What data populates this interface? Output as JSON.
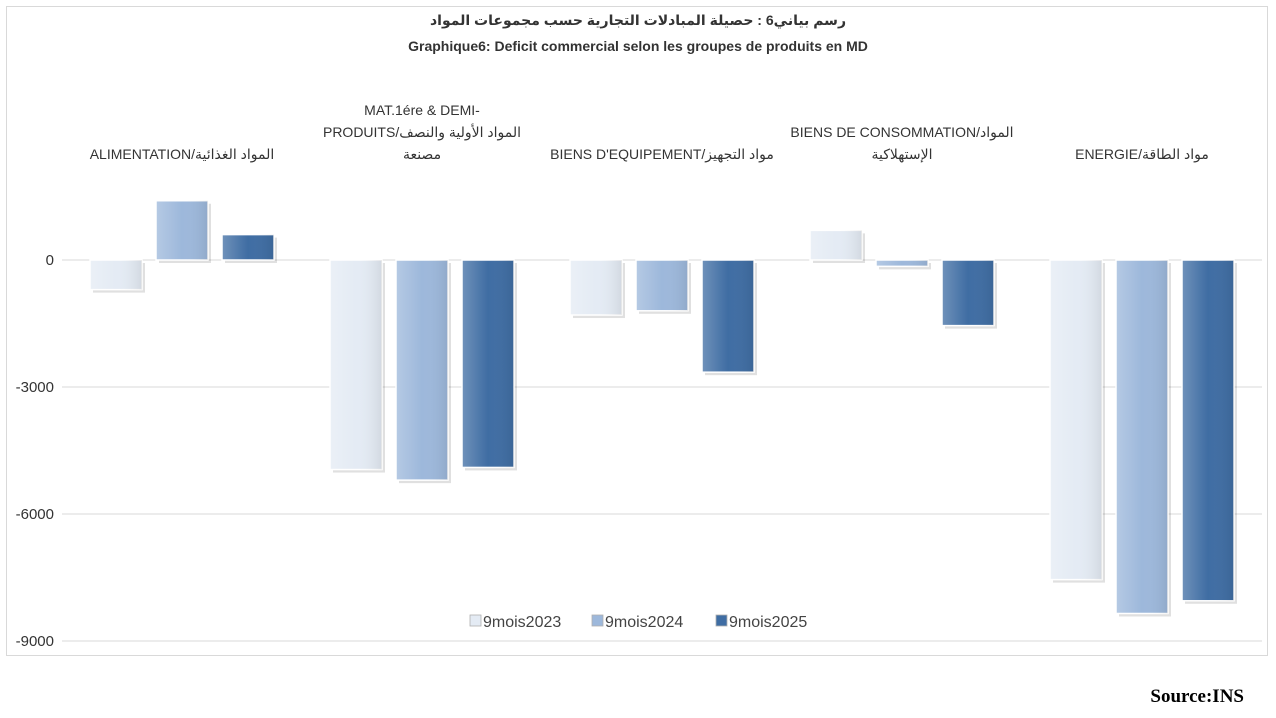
{
  "title_ar": "رسم بياني6 : حصيلة المبادلات التجارية حسب مجموعات المواد",
  "title_fr": "Graphique6: Deficit commercial selon les groupes de produits en MD",
  "source": "Source:INS",
  "colors": {
    "9mois2023": "#e4ebf4",
    "9mois2024": "#9db8db",
    "9mois2025": "#3f6da3"
  },
  "chart_data": {
    "type": "bar",
    "title": "Graphique6: Deficit commercial selon les groupes de produits en MD",
    "categories": [
      [
        "ALIMENTATION/المواد الغذائية"
      ],
      [
        "MAT.1ére & DEMI-",
        "PRODUITS/المواد الأولية والنصف",
        "مصنعة"
      ],
      [
        "BIENS D'EQUIPEMENT/مواد التجهيز"
      ],
      [
        "BIENS DE CONSOMMATION/المواد",
        "الإستهلاكية"
      ],
      [
        "ENERGIE/مواد الطاقة"
      ]
    ],
    "series": [
      {
        "name": "9mois2023",
        "values": [
          -700,
          -4950,
          -1300,
          700,
          -7550
        ]
      },
      {
        "name": "9mois2024",
        "values": [
          1400,
          -5200,
          -1200,
          -150,
          -8350
        ]
      },
      {
        "name": "9mois2025",
        "values": [
          600,
          -4900,
          -2650,
          -1550,
          -8050
        ]
      }
    ],
    "ylim": [
      -9000,
      0
    ],
    "yticks": [
      "0",
      "-3000",
      "-6000",
      "-9000"
    ],
    "xlabel": "",
    "ylabel": "",
    "grid": true,
    "legend": "bottom-center"
  }
}
